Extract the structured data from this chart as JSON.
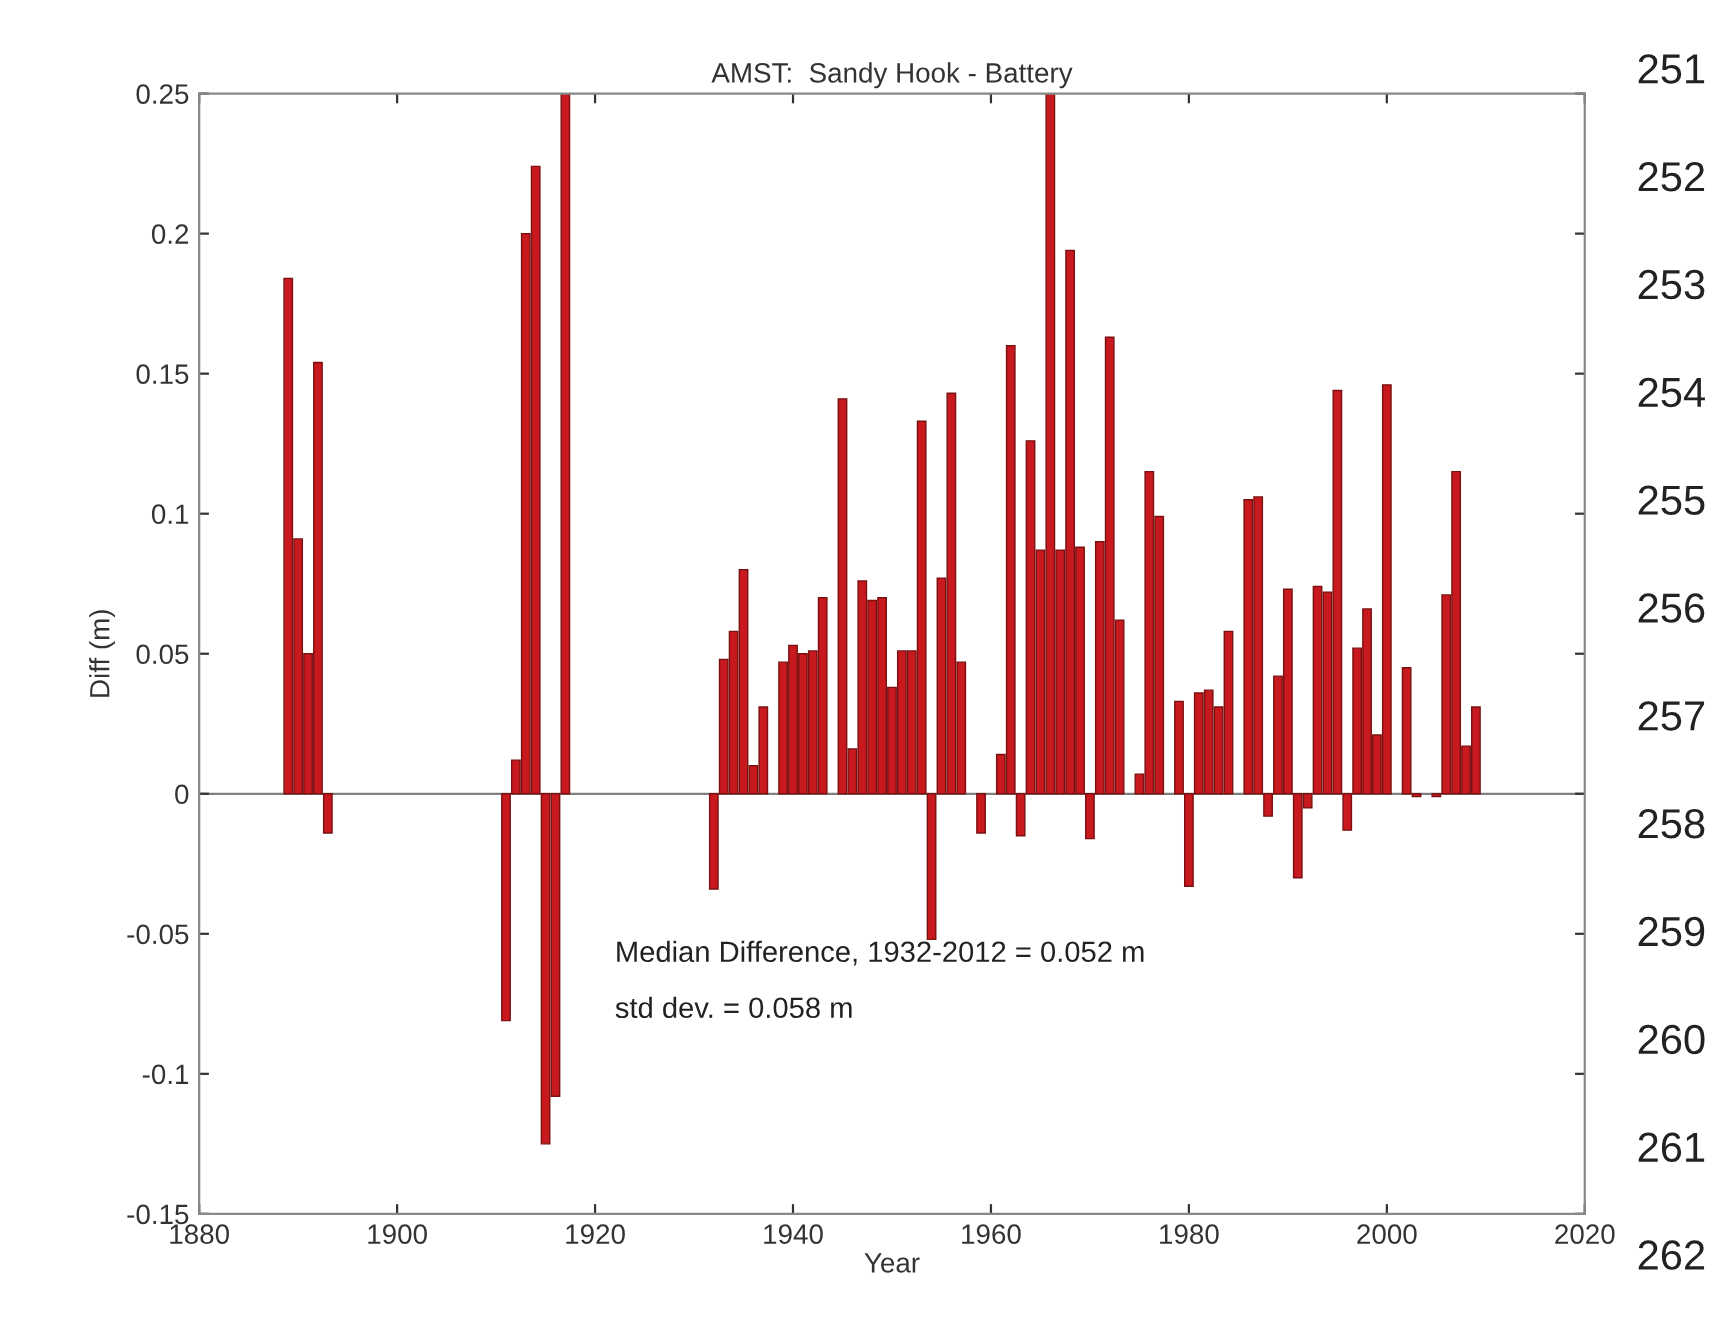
{
  "chart_data": {
    "type": "bar",
    "title": "AMST:  Sandy Hook - Battery",
    "xlabel": "Year",
    "ylabel": "Diff (m)",
    "x": [
      1889,
      1890,
      1891,
      1892,
      1893,
      1911,
      1912,
      1913,
      1914,
      1915,
      1916,
      1917,
      1932,
      1933,
      1934,
      1935,
      1936,
      1937,
      1939,
      1940,
      1941,
      1942,
      1943,
      1945,
      1946,
      1947,
      1948,
      1949,
      1950,
      1951,
      1952,
      1953,
      1954,
      1955,
      1956,
      1957,
      1959,
      1961,
      1962,
      1963,
      1964,
      1965,
      1966,
      1967,
      1968,
      1969,
      1970,
      1971,
      1972,
      1973,
      1975,
      1976,
      1977,
      1979,
      1980,
      1981,
      1982,
      1983,
      1984,
      1986,
      1987,
      1988,
      1989,
      1990,
      1991,
      1992,
      1993,
      1994,
      1995,
      1996,
      1997,
      1998,
      1999,
      2000,
      2002,
      2003,
      2005,
      2006,
      2007,
      2008,
      2009
    ],
    "values": [
      0.184,
      0.091,
      0.05,
      0.154,
      -0.014,
      -0.081,
      0.012,
      0.2,
      0.224,
      -0.125,
      -0.108,
      0.25,
      -0.034,
      0.048,
      0.058,
      0.08,
      0.01,
      0.031,
      0.047,
      0.053,
      0.05,
      0.051,
      0.07,
      0.141,
      0.016,
      0.076,
      0.069,
      0.07,
      0.038,
      0.051,
      0.051,
      0.133,
      -0.052,
      0.077,
      0.143,
      0.047,
      -0.014,
      0.014,
      0.16,
      -0.015,
      0.126,
      0.087,
      0.25,
      0.087,
      0.194,
      0.088,
      -0.016,
      0.09,
      0.163,
      0.062,
      0.007,
      0.115,
      0.099,
      0.033,
      -0.033,
      0.036,
      0.037,
      0.031,
      0.058,
      0.105,
      0.106,
      -0.008,
      0.042,
      0.073,
      -0.03,
      -0.005,
      0.074,
      0.072,
      0.144,
      -0.013,
      0.052,
      0.066,
      0.021,
      0.146,
      0.045,
      -0.001,
      -0.001,
      0.071,
      0.115,
      0.017,
      0.031
    ],
    "color": "#c8191e",
    "xlim": [
      1880,
      2020
    ],
    "xticks": [
      1880,
      1900,
      1920,
      1940,
      1960,
      1980,
      2000,
      2020
    ],
    "ylim": [
      -0.15,
      0.25
    ],
    "yticks": [
      {
        "value": -0.15,
        "label": "-0.15"
      },
      {
        "value": -0.1,
        "label": "-0.1"
      },
      {
        "value": -0.05,
        "label": "-0.05"
      },
      0,
      0.05,
      0.1,
      0.15,
      0.2,
      0.25
    ],
    "ref_lines": [
      {
        "axis": "y",
        "value": 0,
        "label": null,
        "color": "#808080"
      }
    ],
    "annotations": [
      "Median Difference, 1932-2012 = 0.052 m",
      "std dev. = 0.058 m",
      "251",
      "252",
      "253",
      "254",
      "255",
      "256",
      "257",
      "258",
      "259",
      "260",
      "261",
      "262"
    ],
    "grid": false,
    "legend": false
  }
}
